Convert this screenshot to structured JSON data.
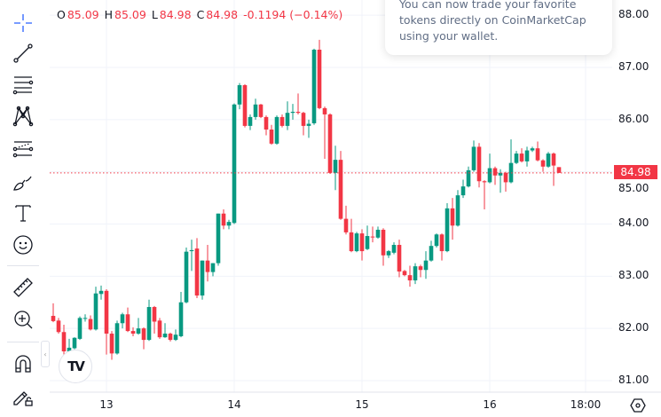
{
  "legend": {
    "open_label": "O",
    "open": "85.09",
    "high_label": "H",
    "high": "85.09",
    "low_label": "L",
    "low": "84.98",
    "close_label": "C",
    "close": "84.98",
    "change": "-0.1194 (−0.14%)"
  },
  "popup": {
    "text": "You can now trade your favorite tokens directly on CoinMarketCap using your wallet."
  },
  "last_price": "84.98",
  "toolbar": [
    "crosshair-icon",
    "trend-line-icon",
    "horizontal-lines-icon",
    "pattern-icon",
    "fibonacci-icon",
    "brush-icon",
    "text-icon",
    "emoji-icon",
    "ruler-icon",
    "zoom-in-icon",
    "magnet-icon",
    "lock-drawings-icon"
  ],
  "logo": "TV",
  "colors": {
    "up": "#089981",
    "down": "#f23645",
    "grid": "#f0f3fa",
    "text": "#131722"
  },
  "chart_data": {
    "type": "candlestick",
    "y_ticks": [
      "88.00",
      "87.00",
      "86.00",
      "85.00",
      "84.00",
      "83.00",
      "82.00",
      "81.00"
    ],
    "x_ticks": [
      "13",
      "14",
      "15",
      "16",
      "18:00"
    ],
    "ylim": [
      80.9,
      88.3
    ],
    "grid": true,
    "last_price": 84.98,
    "ohlc": [
      [
        82.24,
        82.48,
        82.12,
        82.14
      ],
      [
        82.15,
        82.2,
        81.9,
        81.93
      ],
      [
        81.93,
        82.07,
        81.5,
        81.56
      ],
      [
        81.56,
        81.8,
        81.5,
        81.63
      ],
      [
        81.62,
        81.83,
        81.6,
        81.82
      ],
      [
        81.8,
        82.23,
        81.78,
        82.2
      ],
      [
        82.2,
        82.27,
        82.13,
        82.2
      ],
      [
        82.18,
        82.25,
        81.96,
        81.98
      ],
      [
        81.98,
        82.8,
        81.96,
        82.67
      ],
      [
        82.66,
        82.82,
        82.55,
        82.72
      ],
      [
        82.72,
        82.75,
        81.5,
        81.9
      ],
      [
        81.9,
        81.95,
        81.4,
        81.52
      ],
      [
        81.52,
        82.15,
        81.5,
        82.1
      ],
      [
        82.1,
        82.3,
        82.0,
        82.27
      ],
      [
        82.27,
        82.4,
        81.93,
        81.95
      ],
      [
        81.95,
        82.02,
        81.85,
        81.9
      ],
      [
        81.9,
        82.2,
        81.88,
        82.0
      ],
      [
        82.0,
        82.02,
        81.6,
        81.78
      ],
      [
        81.78,
        82.55,
        81.76,
        82.41
      ],
      [
        82.41,
        82.43,
        81.9,
        82.13
      ],
      [
        82.15,
        82.2,
        81.8,
        81.83
      ],
      [
        81.83,
        82.1,
        81.82,
        81.9
      ],
      [
        81.9,
        81.92,
        81.75,
        81.78
      ],
      [
        81.78,
        81.98,
        81.76,
        81.88
      ],
      [
        81.85,
        82.7,
        81.83,
        82.5
      ],
      [
        82.5,
        83.55,
        82.48,
        83.47
      ],
      [
        83.48,
        83.7,
        83.1,
        83.5
      ],
      [
        83.53,
        83.73,
        82.58,
        82.63
      ],
      [
        82.63,
        83.3,
        82.55,
        83.3
      ],
      [
        83.3,
        83.6,
        82.9,
        83.08
      ],
      [
        83.08,
        83.25,
        83.0,
        83.25
      ],
      [
        83.25,
        84.2,
        83.2,
        84.2
      ],
      [
        84.2,
        84.28,
        83.9,
        83.97
      ],
      [
        83.97,
        84.08,
        83.9,
        84.04
      ],
      [
        84.02,
        86.31,
        84.0,
        86.29
      ],
      [
        86.29,
        86.7,
        86.2,
        86.66
      ],
      [
        86.66,
        86.68,
        85.85,
        85.88
      ],
      [
        85.88,
        86.1,
        85.8,
        86.05
      ],
      [
        86.05,
        86.4,
        86.0,
        86.29
      ],
      [
        86.29,
        86.3,
        86.03,
        86.05
      ],
      [
        86.05,
        86.08,
        85.7,
        85.81
      ],
      [
        85.81,
        85.9,
        85.52,
        85.54
      ],
      [
        85.54,
        86.08,
        85.52,
        86.05
      ],
      [
        86.05,
        86.1,
        85.85,
        85.88
      ],
      [
        85.88,
        86.35,
        85.8,
        86.13
      ],
      [
        86.13,
        86.3,
        86.0,
        86.15
      ],
      [
        86.15,
        86.5,
        86.1,
        86.13
      ],
      [
        86.13,
        86.15,
        85.7,
        85.88
      ],
      [
        85.88,
        86.0,
        85.65,
        85.92
      ],
      [
        85.93,
        87.36,
        85.9,
        87.34
      ],
      [
        87.34,
        87.53,
        86.2,
        86.22
      ],
      [
        86.22,
        86.25,
        85.25,
        86.1
      ],
      [
        86.1,
        86.12,
        84.96,
        84.98
      ],
      [
        84.98,
        85.5,
        84.65,
        85.23
      ],
      [
        85.23,
        85.4,
        84.08,
        84.1
      ],
      [
        84.1,
        84.35,
        83.8,
        83.84
      ],
      [
        83.84,
        84.1,
        83.46,
        83.48
      ],
      [
        83.48,
        83.85,
        83.46,
        83.82
      ],
      [
        83.82,
        83.9,
        83.3,
        83.48
      ],
      [
        83.52,
        83.97,
        83.5,
        83.77
      ],
      [
        83.76,
        83.95,
        83.65,
        83.75
      ],
      [
        83.74,
        83.95,
        83.72,
        83.89
      ],
      [
        83.89,
        83.92,
        83.2,
        83.4
      ],
      [
        83.4,
        83.5,
        83.35,
        83.48
      ],
      [
        83.45,
        83.65,
        83.42,
        83.6
      ],
      [
        83.6,
        83.7,
        82.98,
        83.09
      ],
      [
        83.1,
        83.12,
        83.0,
        83.02
      ],
      [
        83.02,
        83.2,
        82.8,
        82.92
      ],
      [
        82.92,
        83.25,
        82.85,
        83.19
      ],
      [
        83.19,
        83.22,
        82.98,
        83.12
      ],
      [
        83.12,
        83.48,
        82.95,
        83.3
      ],
      [
        83.3,
        83.68,
        83.28,
        83.58
      ],
      [
        83.58,
        83.82,
        83.55,
        83.8
      ],
      [
        83.8,
        83.82,
        83.3,
        83.48
      ],
      [
        83.48,
        84.4,
        83.46,
        84.3
      ],
      [
        84.3,
        84.5,
        83.7,
        83.97
      ],
      [
        83.97,
        84.65,
        83.95,
        84.55
      ],
      [
        84.55,
        84.85,
        84.5,
        84.72
      ],
      [
        84.72,
        85.1,
        84.7,
        85.03
      ],
      [
        85.03,
        85.6,
        85.0,
        85.48
      ],
      [
        85.48,
        85.55,
        84.7,
        84.82
      ],
      [
        84.82,
        84.84,
        84.28,
        84.8
      ],
      [
        84.8,
        85.35,
        84.78,
        85.07
      ],
      [
        85.07,
        85.1,
        84.75,
        84.93
      ],
      [
        84.93,
        85.05,
        84.6,
        84.98
      ],
      [
        84.98,
        85.0,
        84.62,
        84.8
      ],
      [
        84.8,
        85.62,
        84.78,
        85.17
      ],
      [
        85.17,
        85.4,
        85.15,
        85.35
      ],
      [
        85.35,
        85.45,
        85.18,
        85.2
      ],
      [
        85.2,
        85.48,
        85.1,
        85.41
      ],
      [
        85.41,
        85.48,
        85.38,
        85.45
      ],
      [
        85.45,
        85.58,
        85.2,
        85.22
      ],
      [
        85.22,
        85.24,
        85.0,
        85.1
      ],
      [
        85.1,
        85.38,
        85.08,
        85.35
      ],
      [
        85.35,
        85.37,
        84.73,
        85.12
      ],
      [
        85.09,
        85.09,
        84.98,
        84.98
      ]
    ]
  }
}
